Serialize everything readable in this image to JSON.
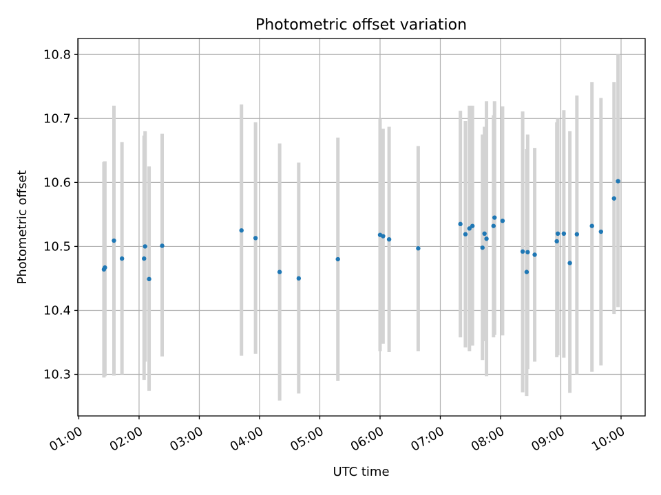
{
  "chart_data": {
    "type": "scatter",
    "title": "Photometric offset variation",
    "xlabel": "UTC time",
    "ylabel": "Photometric offset",
    "xlim": [
      "00:59",
      "10:24"
    ],
    "ylim": [
      10.235,
      10.825
    ],
    "x_ticks": [
      "01:00",
      "02:00",
      "03:00",
      "04:00",
      "05:00",
      "06:00",
      "07:00",
      "08:00",
      "09:00",
      "10:00"
    ],
    "y_ticks": [
      "10.3",
      "10.4",
      "10.5",
      "10.6",
      "10.7",
      "10.8"
    ],
    "grid": true,
    "point_color": "#1f77b4",
    "errorbar_color": "#d3d3d3",
    "points": [
      {
        "x": "01:25",
        "y": 10.464,
        "ylow": 10.295,
        "yhigh": 10.632
      },
      {
        "x": "01:26",
        "y": 10.467,
        "ylow": 10.297,
        "yhigh": 10.633
      },
      {
        "x": "01:35",
        "y": 10.509,
        "ylow": 10.298,
        "yhigh": 10.72
      },
      {
        "x": "01:43",
        "y": 10.481,
        "ylow": 10.3,
        "yhigh": 10.663
      },
      {
        "x": "02:05",
        "y": 10.481,
        "ylow": 10.291,
        "yhigh": 10.673
      },
      {
        "x": "02:06",
        "y": 10.5,
        "ylow": 10.32,
        "yhigh": 10.68
      },
      {
        "x": "02:10",
        "y": 10.449,
        "ylow": 10.274,
        "yhigh": 10.625
      },
      {
        "x": "02:23",
        "y": 10.501,
        "ylow": 10.328,
        "yhigh": 10.676
      },
      {
        "x": "03:42",
        "y": 10.525,
        "ylow": 10.329,
        "yhigh": 10.722
      },
      {
        "x": "03:56",
        "y": 10.513,
        "ylow": 10.332,
        "yhigh": 10.694
      },
      {
        "x": "04:20",
        "y": 10.46,
        "ylow": 10.259,
        "yhigh": 10.661
      },
      {
        "x": "04:39",
        "y": 10.45,
        "ylow": 10.27,
        "yhigh": 10.631
      },
      {
        "x": "05:18",
        "y": 10.48,
        "ylow": 10.29,
        "yhigh": 10.67
      },
      {
        "x": "06:00",
        "y": 10.518,
        "ylow": 10.336,
        "yhigh": 10.7
      },
      {
        "x": "06:03",
        "y": 10.516,
        "ylow": 10.348,
        "yhigh": 10.684
      },
      {
        "x": "06:09",
        "y": 10.511,
        "ylow": 10.335,
        "yhigh": 10.687
      },
      {
        "x": "06:38",
        "y": 10.497,
        "ylow": 10.336,
        "yhigh": 10.657
      },
      {
        "x": "07:20",
        "y": 10.535,
        "ylow": 10.358,
        "yhigh": 10.712
      },
      {
        "x": "07:25",
        "y": 10.519,
        "ylow": 10.342,
        "yhigh": 10.696
      },
      {
        "x": "07:29",
        "y": 10.528,
        "ylow": 10.336,
        "yhigh": 10.72
      },
      {
        "x": "07:32",
        "y": 10.532,
        "ylow": 10.345,
        "yhigh": 10.72
      },
      {
        "x": "07:42",
        "y": 10.498,
        "ylow": 10.322,
        "yhigh": 10.675
      },
      {
        "x": "07:44",
        "y": 10.52,
        "ylow": 10.352,
        "yhigh": 10.687
      },
      {
        "x": "07:46",
        "y": 10.512,
        "ylow": 10.297,
        "yhigh": 10.727
      },
      {
        "x": "07:53",
        "y": 10.532,
        "ylow": 10.358,
        "yhigh": 10.705
      },
      {
        "x": "07:54",
        "y": 10.545,
        "ylow": 10.362,
        "yhigh": 10.727
      },
      {
        "x": "08:02",
        "y": 10.54,
        "ylow": 10.361,
        "yhigh": 10.719
      },
      {
        "x": "08:22",
        "y": 10.492,
        "ylow": 10.272,
        "yhigh": 10.711
      },
      {
        "x": "08:26",
        "y": 10.46,
        "ylow": 10.266,
        "yhigh": 10.652
      },
      {
        "x": "08:27",
        "y": 10.491,
        "ylow": 10.308,
        "yhigh": 10.675
      },
      {
        "x": "08:34",
        "y": 10.487,
        "ylow": 10.32,
        "yhigh": 10.654
      },
      {
        "x": "08:56",
        "y": 10.508,
        "ylow": 10.327,
        "yhigh": 10.694
      },
      {
        "x": "08:57",
        "y": 10.52,
        "ylow": 10.33,
        "yhigh": 10.7
      },
      {
        "x": "09:03",
        "y": 10.52,
        "ylow": 10.326,
        "yhigh": 10.713
      },
      {
        "x": "09:09",
        "y": 10.474,
        "ylow": 10.271,
        "yhigh": 10.68
      },
      {
        "x": "09:16",
        "y": 10.519,
        "ylow": 10.3,
        "yhigh": 10.736
      },
      {
        "x": "09:31",
        "y": 10.532,
        "ylow": 10.304,
        "yhigh": 10.757
      },
      {
        "x": "09:40",
        "y": 10.523,
        "ylow": 10.314,
        "yhigh": 10.732
      },
      {
        "x": "09:53",
        "y": 10.575,
        "ylow": 10.394,
        "yhigh": 10.757
      },
      {
        "x": "09:57",
        "y": 10.602,
        "ylow": 10.405,
        "yhigh": 10.8
      }
    ]
  }
}
